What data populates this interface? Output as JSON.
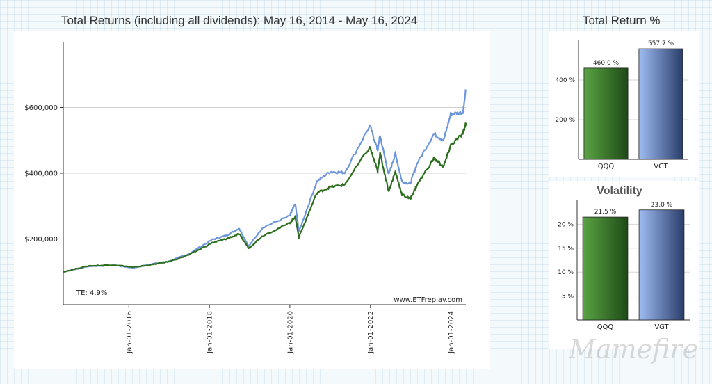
{
  "main_title": "Total Returns (including all dividends): May 16, 2014 - May 16, 2024",
  "te_label": "TE:  4.9%",
  "source_label": "www.ETFreplay.com",
  "total_return_title": "Total Return %",
  "volatility_title": "Volatility",
  "watermark_text": "Mamefire",
  "chart_data": [
    {
      "type": "line",
      "title": "Total Returns (including all dividends): May 16, 2014 - May 16, 2024",
      "x_range": [
        "2014-05-16",
        "2024-05-16"
      ],
      "ylim": [
        0,
        800000
      ],
      "y_ticks": [
        {
          "value": 200000,
          "label": "$200,000"
        },
        {
          "value": 400000,
          "label": "$400,000"
        },
        {
          "value": 600000,
          "label": "$600,000"
        }
      ],
      "x_ticks": [
        {
          "value": "2016-01-01",
          "label": "Jan-01-2016"
        },
        {
          "value": "2018-01-01",
          "label": "Jan-01-2018"
        },
        {
          "value": "2020-01-01",
          "label": "Jan-01-2020"
        },
        {
          "value": "2022-01-01",
          "label": "Jan-01-2022"
        },
        {
          "value": "2024-01-01",
          "label": "Jan-01-2024"
        }
      ],
      "grid": true,
      "series": [
        {
          "name": "VGT",
          "color": "#6b96dc",
          "points": [
            [
              "2014-05-16",
              100000
            ],
            [
              "2015-01-01",
              117000
            ],
            [
              "2015-08-24",
              120000
            ],
            [
              "2016-02-10",
              112000
            ],
            [
              "2016-06-27",
              122000
            ],
            [
              "2016-12-31",
              132000
            ],
            [
              "2017-07-01",
              155000
            ],
            [
              "2018-01-26",
              198000
            ],
            [
              "2018-06-01",
              210000
            ],
            [
              "2018-09-28",
              232000
            ],
            [
              "2018-12-24",
              178000
            ],
            [
              "2019-04-30",
              235000
            ],
            [
              "2019-12-31",
              270000
            ],
            [
              "2020-02-19",
              308000
            ],
            [
              "2020-03-23",
              222000
            ],
            [
              "2020-09-02",
              375000
            ],
            [
              "2021-01-01",
              405000
            ],
            [
              "2021-05-12",
              402000
            ],
            [
              "2021-12-27",
              545000
            ],
            [
              "2022-03-08",
              470000
            ],
            [
              "2022-03-29",
              515000
            ],
            [
              "2022-06-16",
              395000
            ],
            [
              "2022-08-15",
              460000
            ],
            [
              "2022-10-14",
              375000
            ],
            [
              "2022-12-28",
              368000
            ],
            [
              "2023-03-01",
              430000
            ],
            [
              "2023-07-31",
              520000
            ],
            [
              "2023-10-27",
              500000
            ],
            [
              "2023-12-31",
              580000
            ],
            [
              "2024-04-19",
              585000
            ],
            [
              "2024-05-16",
              655000
            ]
          ]
        },
        {
          "name": "QQQ",
          "color": "#2d6e1e",
          "points": [
            [
              "2014-05-16",
              100000
            ],
            [
              "2015-01-01",
              118000
            ],
            [
              "2015-08-24",
              121000
            ],
            [
              "2016-02-10",
              114000
            ],
            [
              "2016-06-27",
              120000
            ],
            [
              "2016-12-31",
              131000
            ],
            [
              "2017-07-01",
              152000
            ],
            [
              "2018-01-26",
              188000
            ],
            [
              "2018-06-01",
              200000
            ],
            [
              "2018-09-28",
              215000
            ],
            [
              "2018-12-24",
              172000
            ],
            [
              "2019-04-30",
              210000
            ],
            [
              "2019-12-31",
              248000
            ],
            [
              "2020-02-19",
              268000
            ],
            [
              "2020-03-23",
              205000
            ],
            [
              "2020-09-02",
              340000
            ],
            [
              "2021-01-01",
              358000
            ],
            [
              "2021-05-12",
              365000
            ],
            [
              "2021-12-27",
              480000
            ],
            [
              "2022-03-08",
              405000
            ],
            [
              "2022-03-29",
              460000
            ],
            [
              "2022-06-16",
              345000
            ],
            [
              "2022-08-15",
              405000
            ],
            [
              "2022-10-14",
              335000
            ],
            [
              "2022-12-28",
              322000
            ],
            [
              "2023-03-01",
              365000
            ],
            [
              "2023-07-31",
              445000
            ],
            [
              "2023-10-27",
              420000
            ],
            [
              "2023-12-31",
              485000
            ],
            [
              "2024-04-19",
              520000
            ],
            [
              "2024-05-16",
              553000
            ]
          ]
        }
      ]
    },
    {
      "type": "bar",
      "title": "Total Return %",
      "categories": [
        "QQQ",
        "VGT"
      ],
      "values": [
        460.0,
        557.7
      ],
      "value_labels": [
        "460.0 %",
        "557.7 %"
      ],
      "ylim": [
        0,
        600
      ],
      "y_ticks": [
        {
          "value": 200,
          "label": "200 %"
        },
        {
          "value": 400,
          "label": "400 %"
        }
      ],
      "colors": [
        "#3a7d2a",
        "#8aa8e8"
      ]
    },
    {
      "type": "bar",
      "title": "Volatility",
      "categories": [
        "QQQ",
        "VGT"
      ],
      "values": [
        21.5,
        23.0
      ],
      "value_labels": [
        "21.5 %",
        "23.0 %"
      ],
      "ylim": [
        0,
        25
      ],
      "y_ticks": [
        {
          "value": 5,
          "label": "5 %"
        },
        {
          "value": 10,
          "label": "10 %"
        },
        {
          "value": 15,
          "label": "15 %"
        },
        {
          "value": 20,
          "label": "20 %"
        }
      ],
      "colors": [
        "#3a7d2a",
        "#8aa8e8"
      ]
    }
  ]
}
